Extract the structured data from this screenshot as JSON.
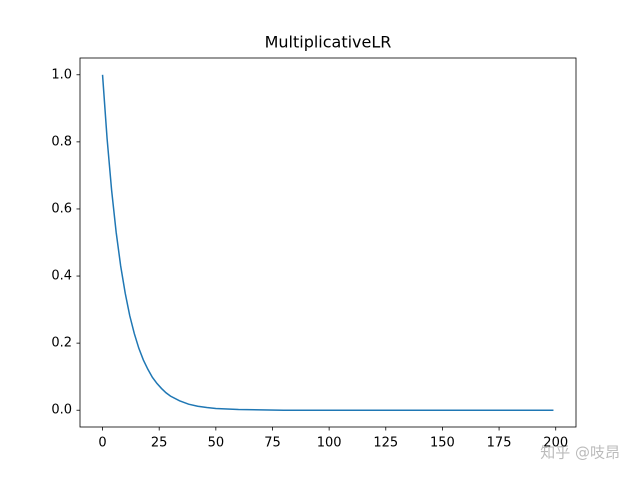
{
  "chart_data": {
    "type": "line",
    "title": "MultiplicativeLR",
    "x": [
      0,
      2,
      4,
      6,
      8,
      10,
      12,
      14,
      16,
      18,
      20,
      22,
      24,
      26,
      28,
      30,
      34,
      38,
      42,
      46,
      50,
      60,
      70,
      80,
      100,
      150,
      199
    ],
    "series": [
      {
        "color": "#1f77b4",
        "values": [
          1,
          0.81,
          0.656,
          0.531,
          0.43,
          0.349,
          0.282,
          0.229,
          0.185,
          0.15,
          0.122,
          0.098,
          0.08,
          0.065,
          0.052,
          0.042,
          0.028,
          0.018,
          0.012,
          0.008,
          0.005,
          0.002,
          0.001,
          0,
          0,
          0,
          0
        ]
      }
    ],
    "xlim": [
      -9.95,
      208.95
    ],
    "ylim": [
      -0.05,
      1.05
    ],
    "xticks": [
      0,
      25,
      50,
      75,
      100,
      125,
      150,
      175,
      200
    ],
    "yticks": [
      {
        "value": 0,
        "label": "0.0"
      },
      {
        "value": 0.2,
        "label": "0.2"
      },
      {
        "value": 0.4,
        "label": "0.4"
      },
      {
        "value": 0.6,
        "label": "0.6"
      },
      {
        "value": 0.8,
        "label": "0.8"
      },
      {
        "value": 1,
        "label": "1.0"
      }
    ],
    "grid": false
  },
  "watermark": "知乎 @吱昂"
}
